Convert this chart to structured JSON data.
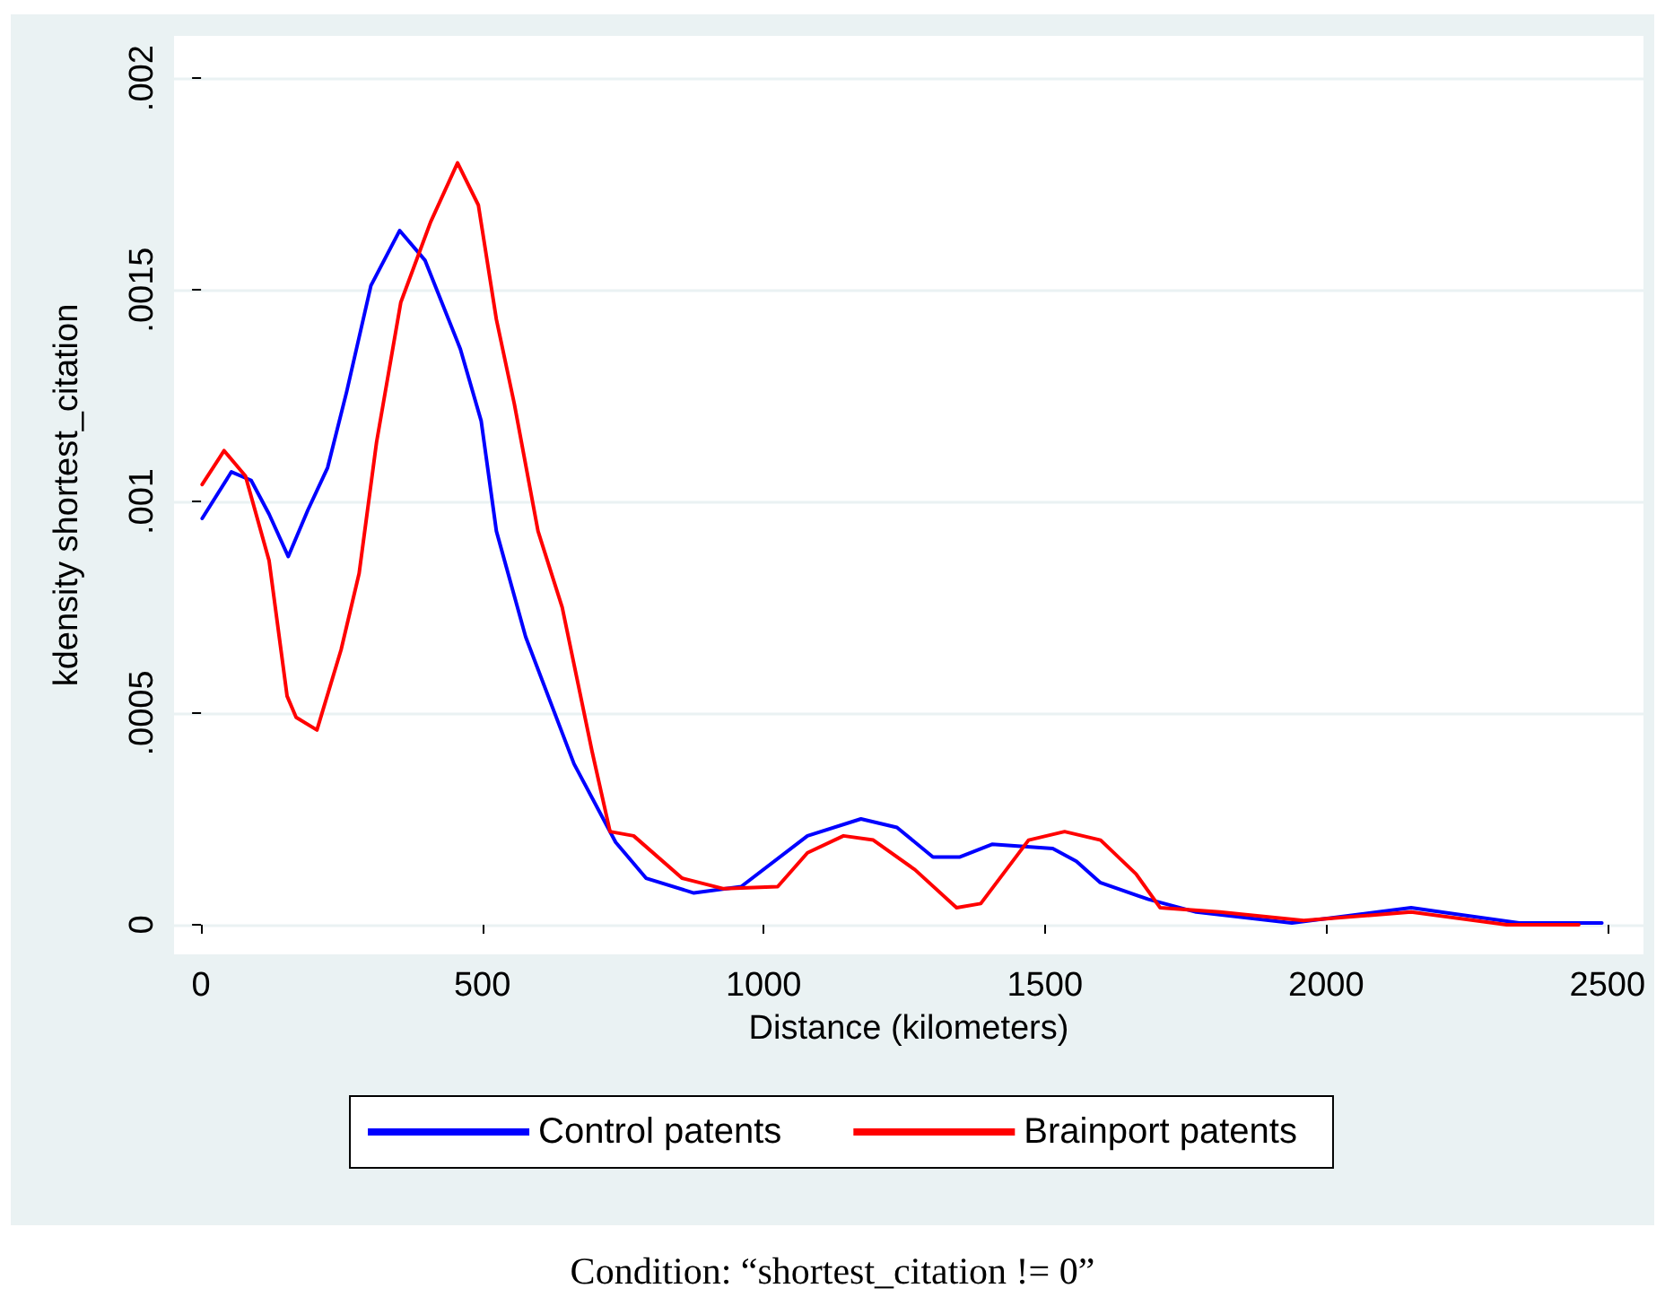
{
  "chart_data": {
    "type": "line",
    "xlabel": "Distance (kilometers)",
    "ylabel": "kdensity shortest_citation",
    "annotations": [
      "Condition: “shortest_citation != 0”"
    ],
    "xlim": [
      -48,
      2564
    ],
    "xticks": [
      0,
      500,
      1000,
      1500,
      2000,
      2500
    ],
    "ylim": [
      -7e-05,
      0.0021
    ],
    "yticks": [
      {
        "value": 0,
        "label": "0"
      },
      {
        "value": 0.0005,
        "label": ".0005"
      },
      {
        "value": 0.001,
        "label": ".001"
      },
      {
        "value": 0.0015,
        "label": ".0015"
      },
      {
        "value": 0.002,
        "label": ".002"
      }
    ],
    "grid": "y",
    "legend": "bottom",
    "marker": "none",
    "line_style": "solid",
    "series": [
      {
        "name": "Control patents",
        "color": "#0000ff",
        "x": [
          2,
          54,
          89,
          121,
          155,
          190,
          225,
          259,
          302,
          353,
          398,
          461,
          498,
          525,
          577,
          663,
          737,
          791,
          876,
          960,
          1078,
          1173,
          1237,
          1301,
          1349,
          1406,
          1514,
          1556,
          1598,
          1684,
          1769,
          1939,
          2151,
          2343,
          2490
        ],
        "values": [
          0.00096,
          0.00107,
          0.00105,
          0.00097,
          0.00087,
          0.00098,
          0.00108,
          0.00126,
          0.00151,
          0.00164,
          0.00157,
          0.00136,
          0.00119,
          0.00093,
          0.00068,
          0.00038,
          0.000195,
          0.00011,
          7.5e-05,
          9e-05,
          0.00021,
          0.00025,
          0.00023,
          0.00016,
          0.00016,
          0.00019,
          0.00018,
          0.00015,
          0.0001,
          6e-05,
          3e-05,
          4e-06,
          4e-05,
          4e-06,
          4e-06
        ]
      },
      {
        "name": "Brainport patents",
        "color": "#ff0000",
        "x": [
          2,
          41,
          79,
          121,
          153,
          169,
          206,
          249,
          281,
          312,
          355,
          408,
          456,
          493,
          525,
          557,
          599,
          642,
          695,
          727,
          769,
          855,
          929,
          1025,
          1078,
          1142,
          1195,
          1269,
          1343,
          1386,
          1471,
          1535,
          1599,
          1662,
          1705,
          1811,
          1960,
          2151,
          2321,
          2449
        ],
        "values": [
          0.00104,
          0.00112,
          0.00106,
          0.00086,
          0.00054,
          0.00049,
          0.00046,
          0.00065,
          0.00083,
          0.00114,
          0.00147,
          0.00166,
          0.0018,
          0.0017,
          0.00143,
          0.00123,
          0.00093,
          0.00075,
          0.00041,
          0.00022,
          0.00021,
          0.00011,
          8.5e-05,
          9e-05,
          0.00017,
          0.00021,
          0.0002,
          0.00013,
          4e-05,
          5e-05,
          0.0002,
          0.00022,
          0.0002,
          0.00012,
          4e-05,
          3e-05,
          1e-05,
          3e-05,
          0,
          0
        ]
      }
    ]
  }
}
